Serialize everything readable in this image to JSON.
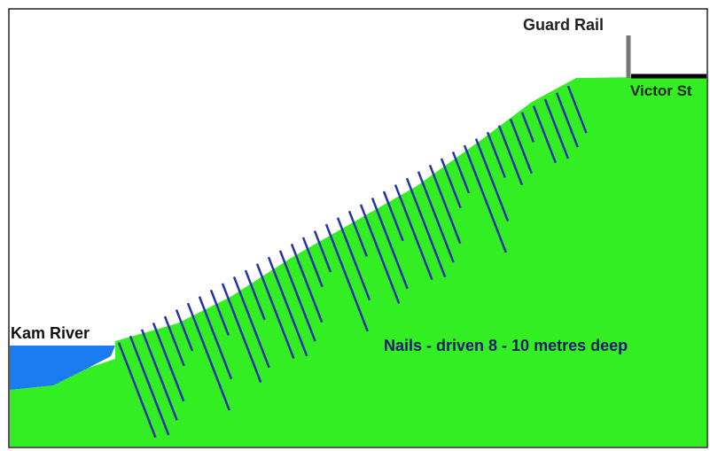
{
  "labels": {
    "guard_rail": "Guard Rail",
    "street": "Victor St",
    "river": "Kam River",
    "nails": "Nails - driven 8 - 10 metres deep"
  }
}
